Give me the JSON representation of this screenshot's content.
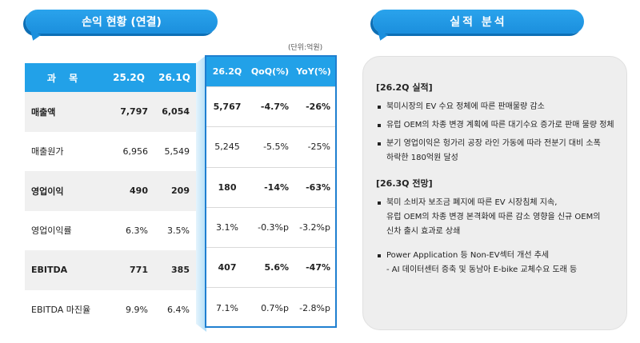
{
  "headers": {
    "left_title": "손익 현황 (연결)",
    "right_title": "실적 분석",
    "unit": "(단위:억원)"
  },
  "left_table": {
    "columns": [
      "과 목",
      "25.2Q",
      "26.1Q"
    ],
    "rows": [
      {
        "name": "매출액",
        "v1": "7,797",
        "v2": "6,054"
      },
      {
        "name": "매출원가",
        "v1": "6,956",
        "v2": "5,549"
      },
      {
        "name": "영업이익",
        "v1": "490",
        "v2": "209"
      },
      {
        "name": "영업이익률",
        "v1": "6.3%",
        "v2": "3.5%"
      },
      {
        "name": "EBITDA",
        "v1": "771",
        "v2": "385"
      },
      {
        "name": "EBITDA 마진율",
        "v1": "9.9%",
        "v2": "6.4%"
      }
    ]
  },
  "right_table": {
    "columns": [
      "26.2Q",
      "QoQ(%)",
      "YoY(%)"
    ],
    "rows": [
      {
        "cur": "5,767",
        "qoq": "-4.7%",
        "yoy": "-26%"
      },
      {
        "cur": "5,245",
        "qoq": "-5.5%",
        "yoy": "-25%"
      },
      {
        "cur": "180",
        "qoq": "-14%",
        "yoy": "-63%"
      },
      {
        "cur": "3.1%",
        "qoq": "-0.3%p",
        "yoy": "-3.2%p"
      },
      {
        "cur": "407",
        "qoq": "5.6%",
        "yoy": "-47%"
      },
      {
        "cur": "7.1%",
        "qoq": "0.7%p",
        "yoy": "-2.8%p"
      }
    ]
  },
  "analysis": {
    "section1_title": "[26.2Q 실적]",
    "section1_items": [
      "북미시장의 EV 수요 정체에 따른 판매물량 감소",
      "유럽 OEM의 차종 변경 계획에 따른 대기수요 증가로 판매 물량 정체",
      "분기 영업이익은 헝가리 공장 라인 가동에 따라 전분기 대비 소폭",
      "하락한 180억원 달성"
    ],
    "section2_title": "[26.3Q 전망]",
    "section2_items": [
      "북미 소비자 보조금 폐지에 따른 EV 시장침체 지속,",
      "유럽 OEM의 차종 변경 본격화에 따른 감소 영향을 신규 OEM의",
      "신차 출시 효과로 상쇄",
      "Power Application 등 Non-EV섹터 개선 추세",
      "- AI 데이터센터 증축 및 동남아 E-bike 교체수요 도래 등"
    ]
  },
  "colors": {
    "accent": "#22a1e8",
    "accent_dark": "#1f7fd0",
    "row_shade": "#f0f0f0",
    "panel_bg": "#eeeeee"
  }
}
